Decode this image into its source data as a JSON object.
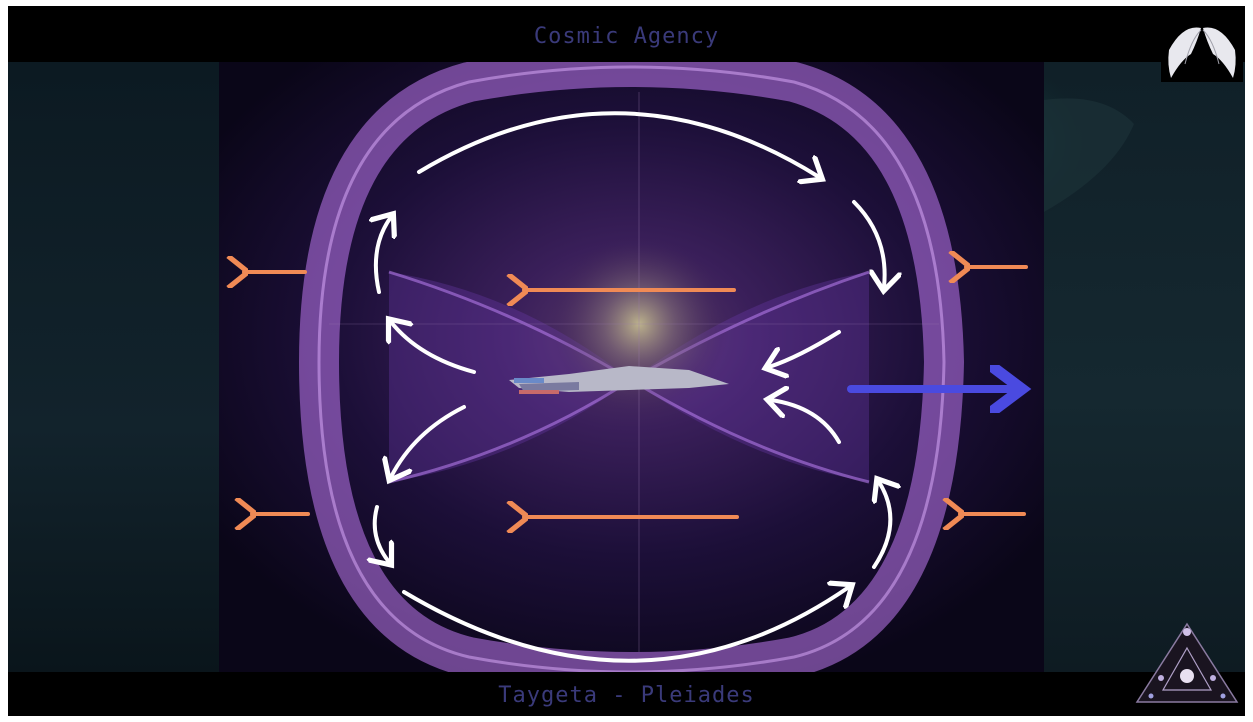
{
  "header": {
    "title": "Cosmic Agency"
  },
  "footer": {
    "subtitle": "Taygeta - Pleiades"
  },
  "colors": {
    "title_text": "#3a3a7a",
    "torus_purple": "#b070f0",
    "flow_arrows": "#ffffff",
    "inflow_arrows": "#f08a55",
    "thrust_arrow": "#4a4ae0"
  },
  "icons": {
    "top_right": "angel-wings-logo",
    "bottom_right": "sacred-triangle-logo"
  }
}
